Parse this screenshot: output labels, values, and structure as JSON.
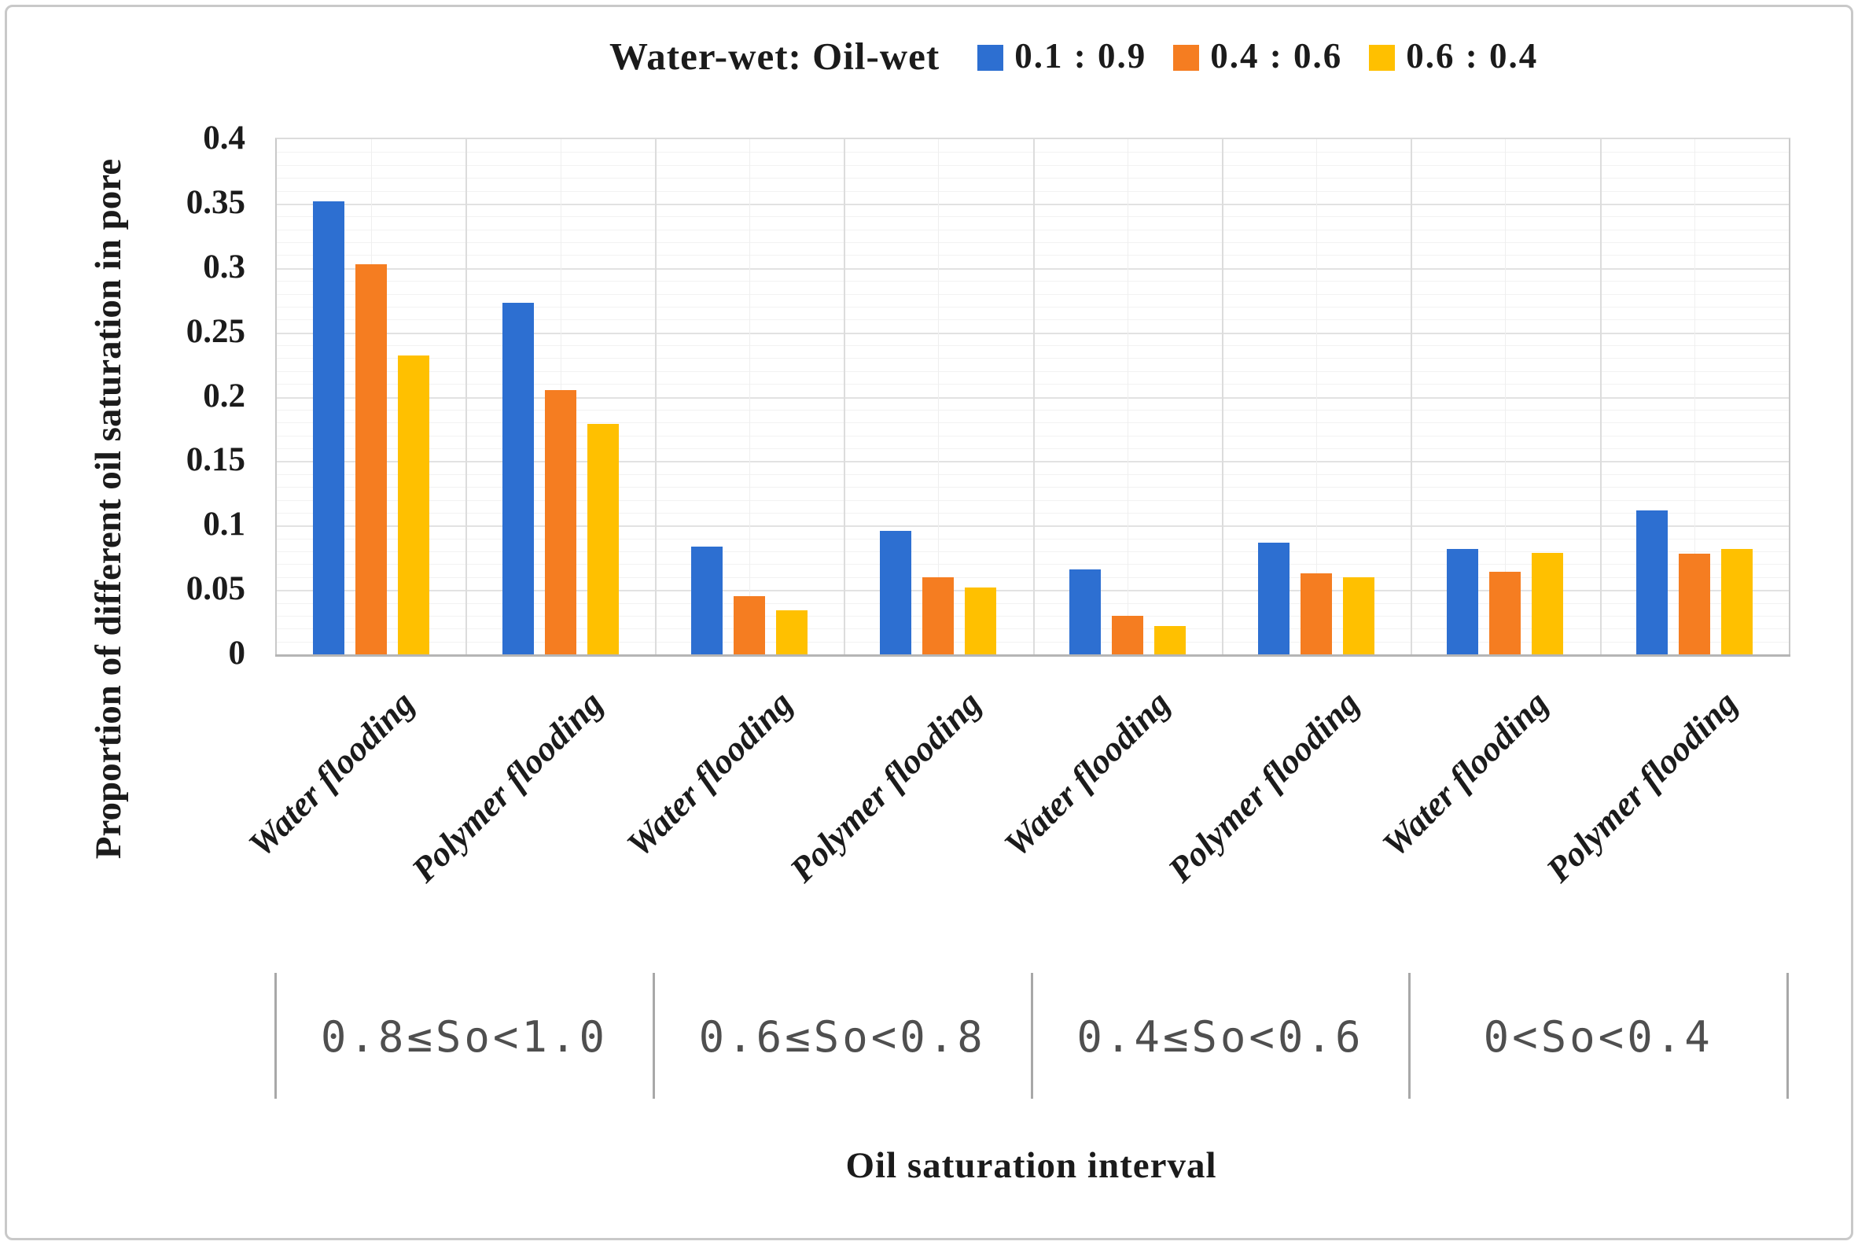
{
  "figure": {
    "header": {
      "title": "Water-wet: Oil-wet"
    }
  },
  "chart_data": {
    "type": "bar",
    "title": "Water-wet: Oil-wet",
    "xlabel": "Oil saturation interval",
    "ylabel": "Proportion of different oil saturation in pore",
    "ylim": [
      0,
      0.4
    ],
    "ytick_step_major": 0.05,
    "ytick_step_minor": 0.01,
    "grid": true,
    "legend_position": "top",
    "yticks": [
      "0.4",
      "0.35",
      "0.3",
      "0.25",
      "0.2",
      "0.15",
      "0.1",
      "0.05",
      "0"
    ],
    "categories": [
      "Water flooding",
      "Polymer flooding",
      "Water flooding",
      "Polymer flooding",
      "Water flooding",
      "Polymer flooding",
      "Water flooding",
      "Polymer flooding"
    ],
    "interval_groups": [
      "0.8≤So<1.0",
      "0.6≤So<0.8",
      "0.4≤So<0.6",
      "0<So<0.4"
    ],
    "series": [
      {
        "name": "0.1 : 0.9",
        "color": "#2d6fd1",
        "values": [
          0.352,
          0.273,
          0.084,
          0.096,
          0.066,
          0.087,
          0.082,
          0.112
        ]
      },
      {
        "name": "0.4 : 0.6",
        "color": "#f57d21",
        "values": [
          0.303,
          0.205,
          0.045,
          0.06,
          0.03,
          0.063,
          0.064,
          0.078
        ]
      },
      {
        "name": "0.6 : 0.4",
        "color": "#ffc000",
        "values": [
          0.232,
          0.179,
          0.034,
          0.052,
          0.022,
          0.06,
          0.079,
          0.082
        ]
      }
    ]
  }
}
